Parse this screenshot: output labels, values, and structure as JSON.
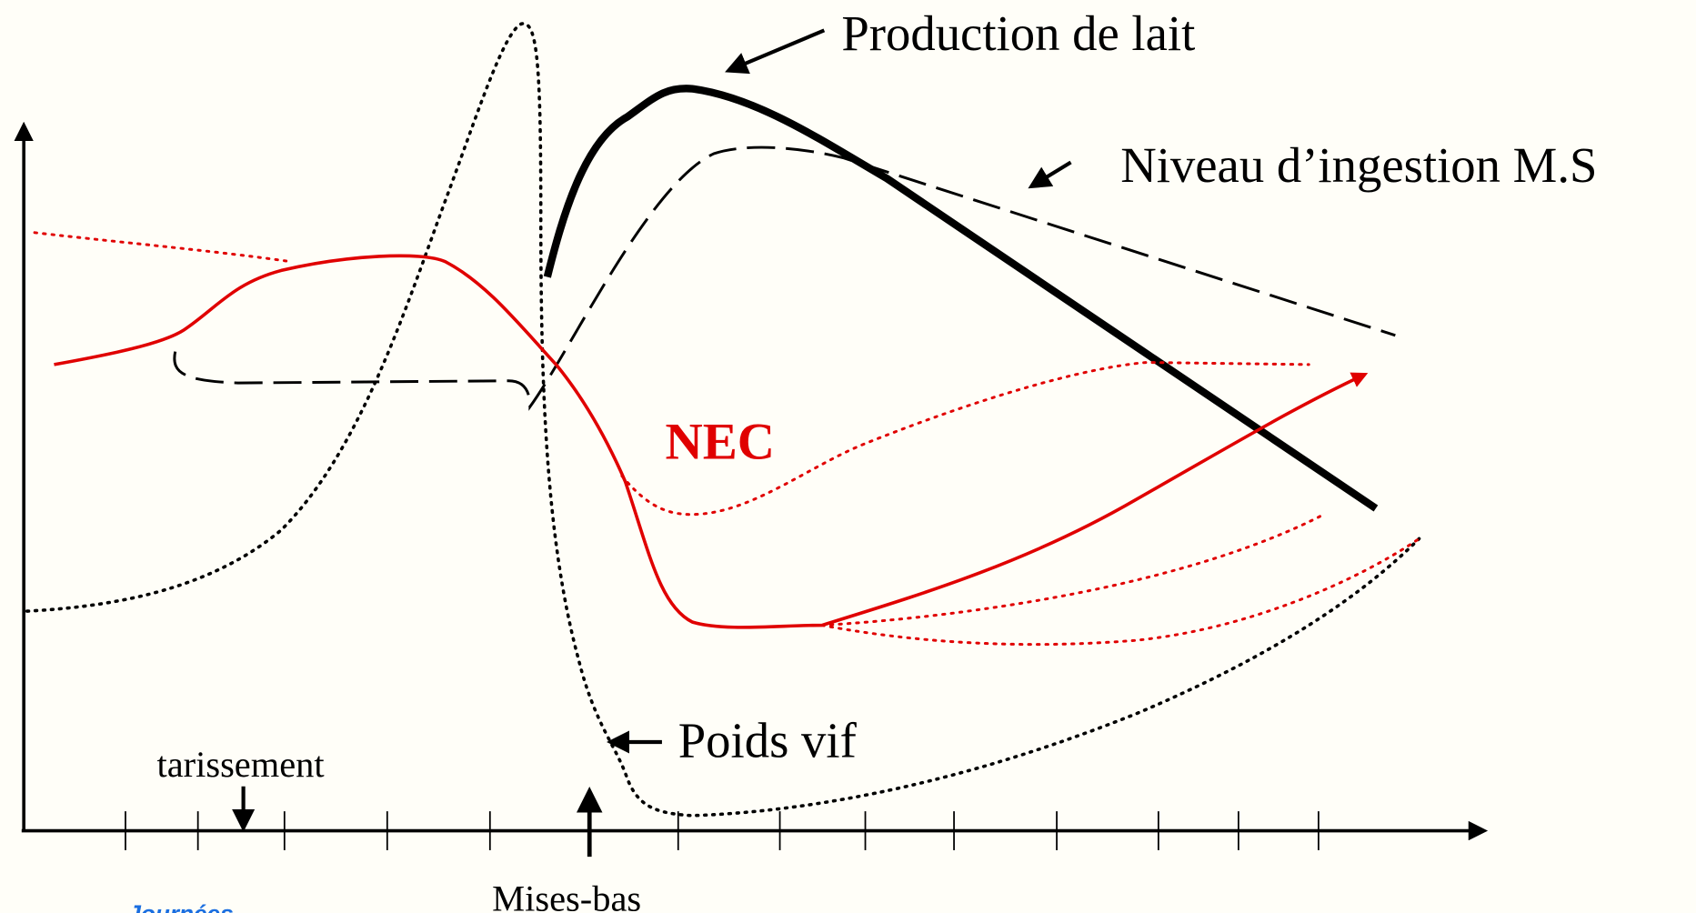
{
  "labels": {
    "production": "Production de lait",
    "ingestion": "Niveau d’ingestion M.S",
    "nec": "NEC",
    "poids": "Poids vif",
    "tarissement": "tarissement",
    "mises_bas": "Mises-bas",
    "journees": "Journées"
  }
}
